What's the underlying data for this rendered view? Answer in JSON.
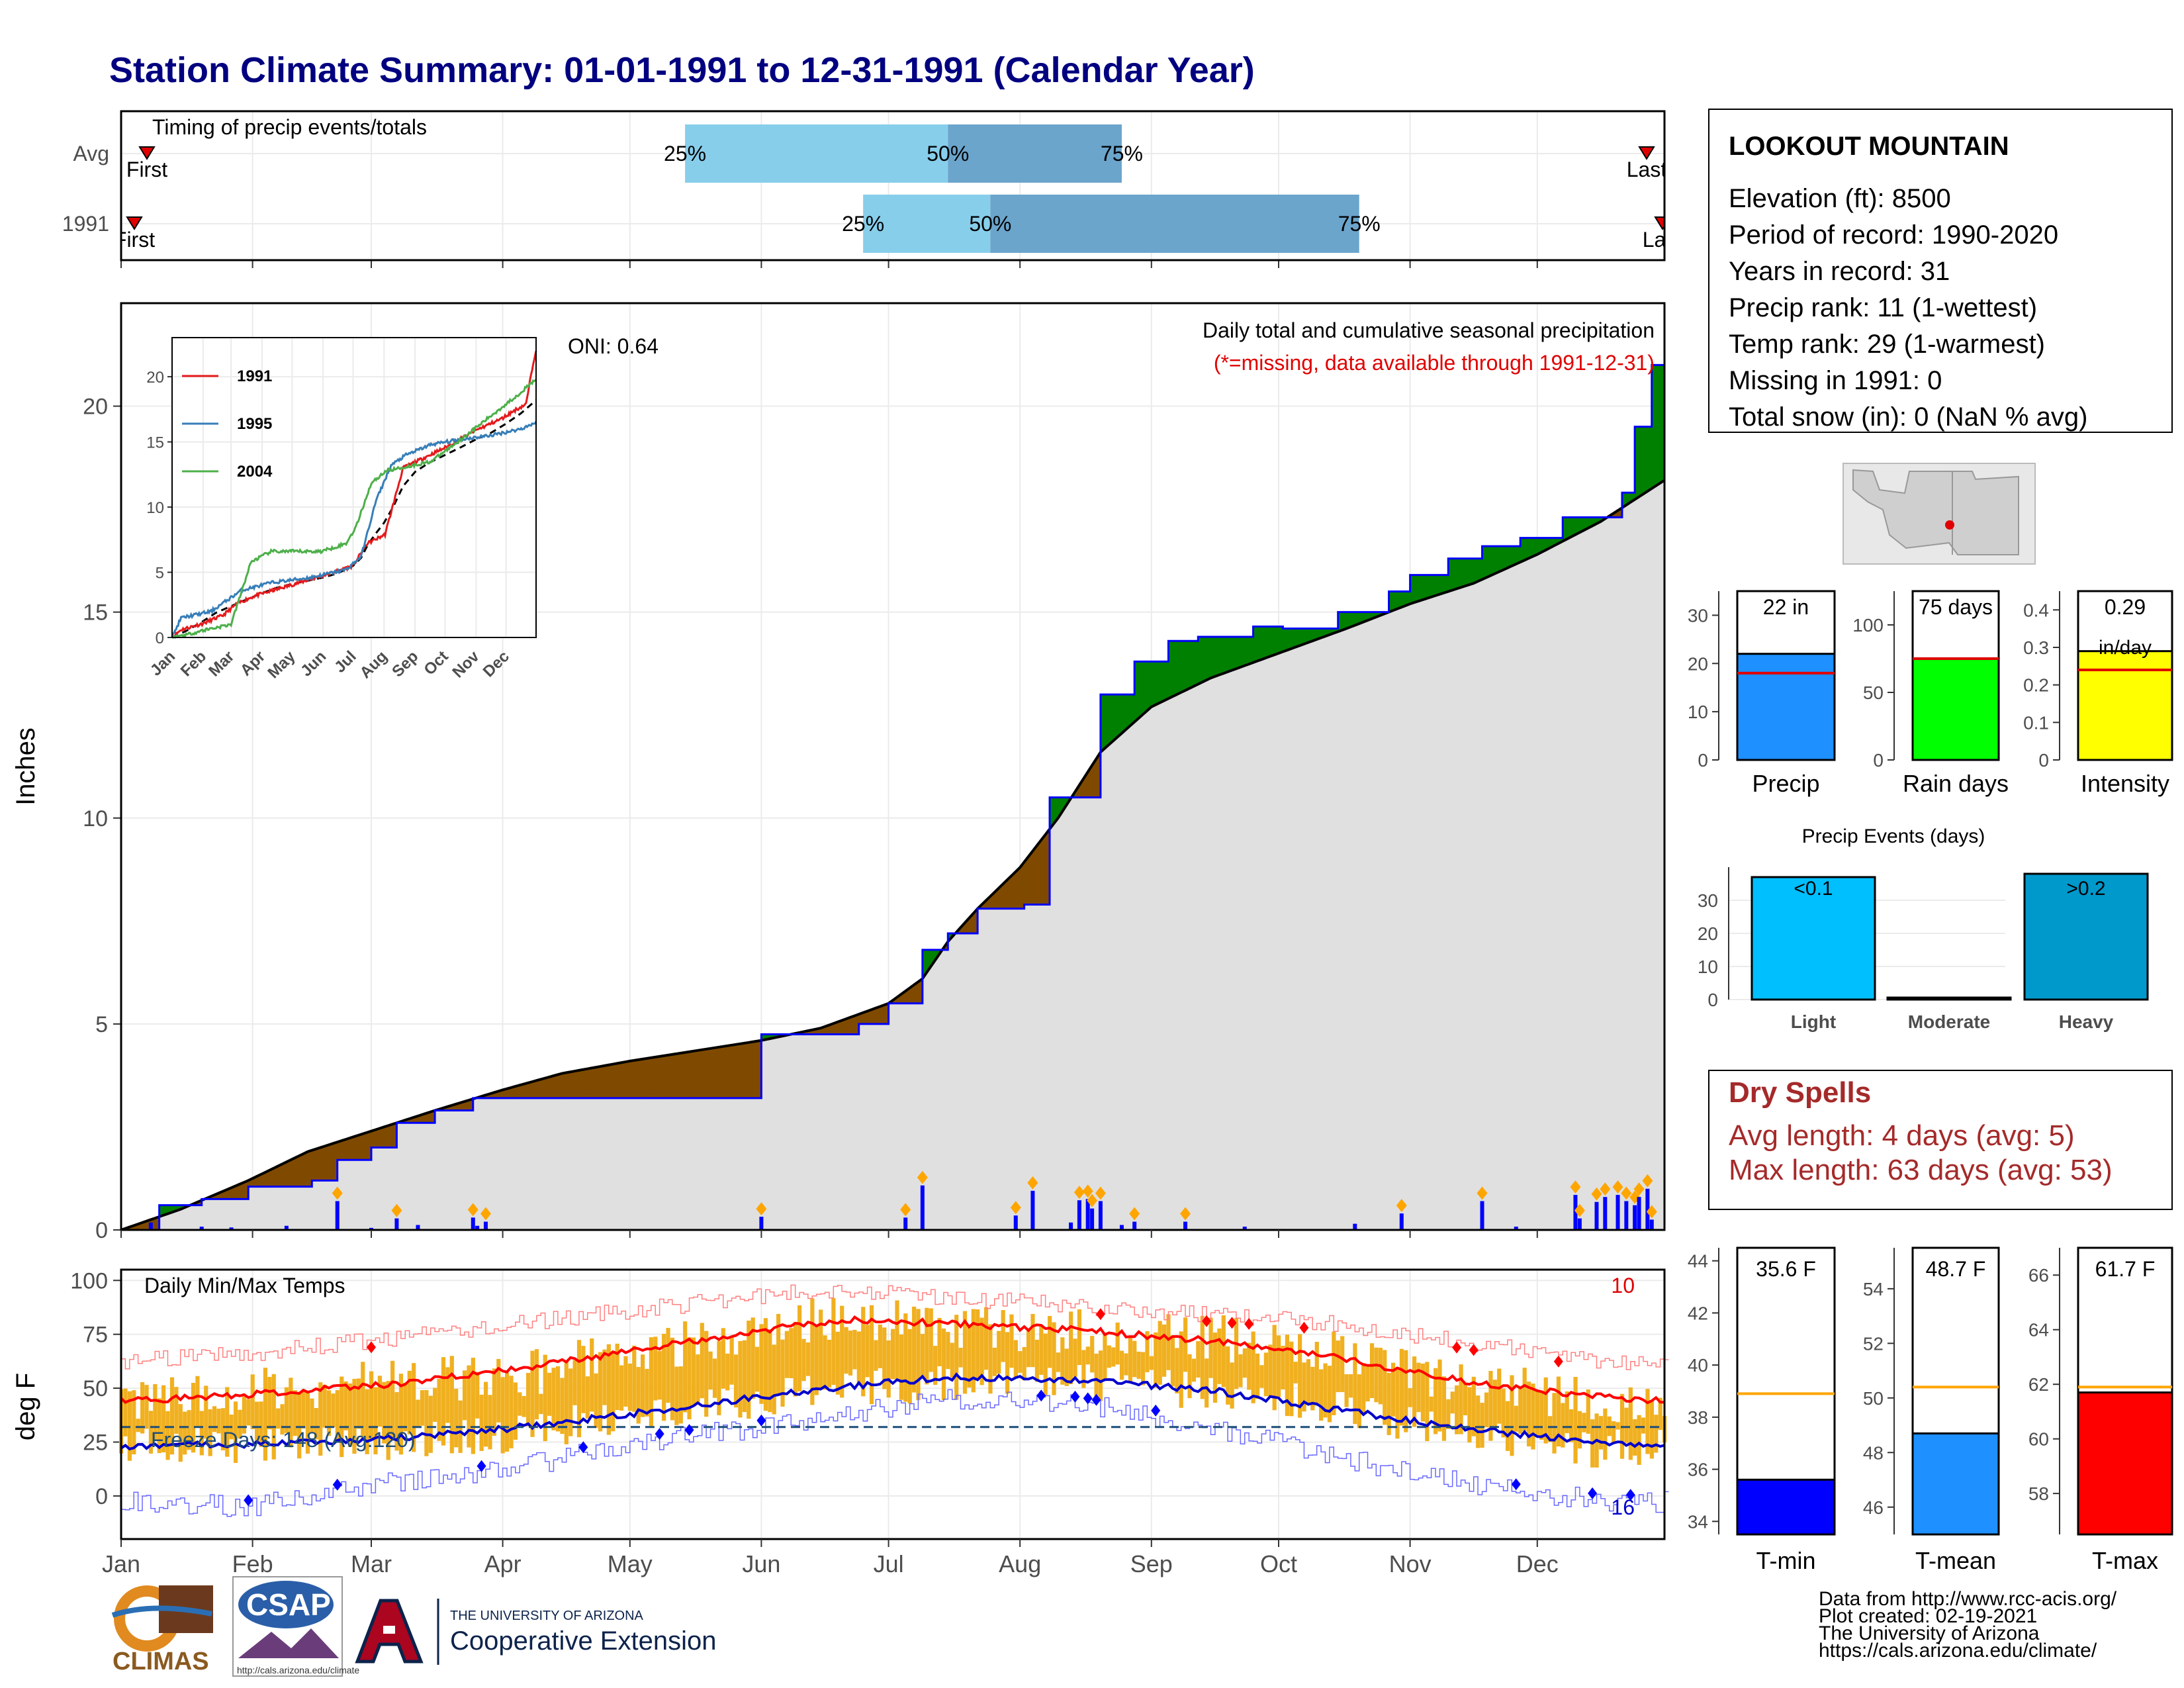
{
  "title": "Station Climate Summary: 01-01-1991 to 12-31-1991 (Calendar Year)",
  "months": [
    "Jan",
    "Feb",
    "Mar",
    "Apr",
    "May",
    "Jun",
    "Jul",
    "Aug",
    "Sep",
    "Oct",
    "Nov",
    "Dec"
  ],
  "timing": {
    "label": "Timing of precip events/totals",
    "rows": [
      {
        "name": "Avg",
        "q25": 134,
        "q50": 196,
        "q75": 237,
        "first_label": "First",
        "last_label": "Last"
      },
      {
        "name": "1991",
        "q25": 176,
        "q50": 206,
        "q75": 293,
        "first_label": "First",
        "last_label": "Last"
      }
    ],
    "q_labels": [
      "25%",
      "50%",
      "75%"
    ]
  },
  "precip": {
    "ylabel": "Inches",
    "yticks": [
      0,
      5,
      10,
      15,
      20
    ],
    "oni": "ONI: 0.64",
    "title": "Daily total and cumulative seasonal precipitation",
    "missing_note": "(*=missing, data available through 1991-12-31)"
  },
  "inset": {
    "yticks": [
      0,
      5,
      10,
      15,
      20
    ],
    "months": [
      "Jan",
      "Feb",
      "Mar",
      "Apr",
      "May",
      "Jun",
      "Jul",
      "Aug",
      "Sep",
      "Oct",
      "Nov",
      "Dec"
    ],
    "series": [
      {
        "name": "1991",
        "color": "#e41a1c"
      },
      {
        "name": "1995",
        "color": "#377eb8"
      },
      {
        "name": "2004",
        "color": "#4daf4a"
      }
    ]
  },
  "temps": {
    "ylabel": "deg F",
    "label": "Daily Min/Max Temps",
    "freeze": "Freeze Days: 148 (Avg:120)",
    "yticks": [
      0,
      25,
      50,
      75,
      100
    ],
    "count_hi": "10",
    "count_lo": "16"
  },
  "station": {
    "name": "LOOKOUT MOUNTAIN",
    "lines": [
      "Elevation (ft): 8500",
      "Period of record: 1990-2020",
      "Years in record: 31",
      "Precip rank: 11 (1-wettest)",
      "Temp rank: 29 (1-warmest)",
      "Missing in 1991: 0",
      "Total snow (in): 0 (NaN % avg)"
    ]
  },
  "summary_bars": [
    {
      "xlabel": "Precip",
      "value_label": "22 in",
      "value": 22,
      "avg": 18,
      "ymax": 35,
      "yticks": [
        0,
        10,
        20,
        30
      ],
      "color": "#1e90ff"
    },
    {
      "xlabel": "Rain days",
      "value_label": "75 days",
      "value": 75,
      "avg": 75,
      "ymax": 125,
      "yticks": [
        0,
        50,
        100
      ],
      "color": "#00ff00"
    },
    {
      "xlabel": "Intensity",
      "value_label": "0.29",
      "value_label2": "in/day",
      "value": 0.29,
      "avg": 0.24,
      "ymax": 0.45,
      "yticks": [
        0.0,
        0.1,
        0.2,
        0.3,
        0.4
      ],
      "color": "#ffff00"
    }
  ],
  "events": {
    "title": "Precip Events (days)",
    "yticks": [
      0,
      10,
      20,
      30
    ],
    "bars": [
      {
        "name": "Light",
        "label": "<0.1",
        "value": 37,
        "color": "#00bfff"
      },
      {
        "name": "Moderate",
        "label": "",
        "value": 0,
        "color": "#00bfff"
      },
      {
        "name": "Heavy",
        "label": ">0.2",
        "value": 38,
        "color": "#0099cc"
      }
    ]
  },
  "dry": {
    "title": "Dry Spells",
    "avg": "Avg length: 4 days (avg: 5)",
    "max": "Max length: 63 days (avg: 53)"
  },
  "temp_bars": [
    {
      "xlabel": "T-min",
      "value_label": "35.6 F",
      "value": 35.6,
      "avg": 38.9,
      "ymin": 33.5,
      "ymax": 44.5,
      "yticks": [
        34,
        36,
        38,
        40,
        42,
        44
      ],
      "color": "#0000ff"
    },
    {
      "xlabel": "T-mean",
      "value_label": "48.7 F",
      "value": 48.7,
      "avg": 50.4,
      "ymin": 45,
      "ymax": 55.5,
      "yticks": [
        46,
        48,
        50,
        52,
        54
      ],
      "color": "#1e90ff"
    },
    {
      "xlabel": "T-max",
      "value_label": "61.7 F",
      "value": 61.7,
      "avg": 61.9,
      "ymin": 56.5,
      "ymax": 67,
      "yticks": [
        58,
        60,
        62,
        64,
        66
      ],
      "color": "#ff0000"
    }
  ],
  "credits": [
    "Data from http://www.rcc-acis.org/",
    "Plot created: 02-19-2021",
    "The University of Arizona",
    "https://cals.arizona.edu/climate/"
  ],
  "logos": {
    "climas": "CLIMAS",
    "csap": "CSAP",
    "csap_url": "http://cals.arizona.edu/climate",
    "ua_small": "THE UNIVERSITY OF ARIZONA",
    "ua_big": "Cooperative Extension"
  },
  "chart_data": [
    {
      "type": "line",
      "title": "Daily total and cumulative seasonal precipitation",
      "ylabel": "Inches",
      "ylim": [
        0,
        22.5
      ],
      "x_unit": "day of year",
      "series": [
        {
          "name": "1991",
          "x": [
            1,
            10,
            20,
            31,
            46,
            52,
            60,
            66,
            75,
            84,
            152,
            167,
            175,
            182,
            190,
            196,
            203,
            214,
            220,
            232,
            240,
            248,
            255,
            268,
            275,
            288,
            300,
            305,
            314,
            322,
            331,
            341,
            355,
            358,
            362,
            365
          ],
          "values": [
            0,
            0.6,
            0.75,
            1.05,
            1.2,
            1.7,
            2.0,
            2.6,
            2.9,
            3.2,
            4.75,
            4.75,
            5.0,
            5.5,
            6.8,
            7.2,
            7.8,
            7.9,
            10.5,
            13.0,
            13.8,
            14.3,
            14.4,
            14.65,
            14.6,
            15.0,
            15.5,
            15.9,
            16.3,
            16.6,
            16.8,
            17.3,
            17.9,
            19.5,
            21.0,
            22.1
          ]
        },
        {
          "name": "Avg",
          "x": [
            1,
            15,
            31,
            45,
            60,
            75,
            91,
            105,
            121,
            152,
            166,
            182,
            190,
            196,
            203,
            213,
            222,
            232,
            244,
            258,
            274,
            290,
            305,
            320,
            335,
            350,
            365
          ],
          "values": [
            0,
            0.5,
            1.2,
            1.9,
            2.4,
            2.9,
            3.4,
            3.8,
            4.1,
            4.6,
            4.9,
            5.5,
            6.1,
            7.0,
            7.8,
            8.8,
            10.0,
            11.6,
            12.7,
            13.4,
            14.0,
            14.6,
            15.2,
            15.7,
            16.4,
            17.2,
            18.2
          ]
        }
      ],
      "daily_precip": {
        "days": [
          8,
          20,
          27,
          40,
          52,
          60,
          66,
          71,
          84,
          85,
          87,
          152,
          186,
          190,
          212,
          216,
          225,
          227,
          229,
          230,
          232,
          237,
          240,
          252,
          266,
          292,
          303,
          322,
          330,
          344,
          345,
          349,
          351,
          354,
          356,
          358,
          359,
          361,
          362
        ],
        "values": [
          0.18,
          0.08,
          0.06,
          0.1,
          0.7,
          0.05,
          0.28,
          0.12,
          0.3,
          0.1,
          0.2,
          0.32,
          0.3,
          1.08,
          0.35,
          0.95,
          0.18,
          0.72,
          0.75,
          0.52,
          0.7,
          0.12,
          0.2,
          0.2,
          0.08,
          0.15,
          0.4,
          0.7,
          0.08,
          0.85,
          0.28,
          0.68,
          0.8,
          0.85,
          0.7,
          0.6,
          0.8,
          1.0,
          0.25
        ]
      }
    },
    {
      "type": "line",
      "title": "Daily Min/Max Temps",
      "ylabel": "deg F",
      "ylim": [
        -20,
        105
      ],
      "x_unit": "day of year",
      "series": [
        {
          "name": "Avg max",
          "x": [
            1,
            31,
            60,
            91,
            121,
            152,
            172,
            196,
            227,
            258,
            288,
            319,
            349,
            365
          ],
          "values": [
            44,
            47,
            51,
            58,
            67,
            77,
            82,
            80,
            77,
            72,
            64,
            53,
            46,
            44
          ]
        },
        {
          "name": "Avg min",
          "x": [
            1,
            31,
            60,
            91,
            121,
            152,
            172,
            196,
            227,
            258,
            288,
            319,
            349,
            365
          ],
          "values": [
            23,
            24,
            26,
            31,
            38,
            46,
            51,
            55,
            54,
            49,
            40,
            31,
            25,
            23
          ]
        },
        {
          "name": "Record high",
          "x": [
            1,
            31,
            60,
            91,
            121,
            152,
            172,
            196,
            227,
            258,
            288,
            319,
            349,
            365
          ],
          "values": [
            62,
            66,
            72,
            79,
            86,
            93,
            96,
            92,
            88,
            84,
            80,
            71,
            63,
            62
          ]
        },
        {
          "name": "Record low",
          "x": [
            1,
            31,
            60,
            91,
            121,
            152,
            172,
            196,
            227,
            258,
            288,
            319,
            349,
            365
          ],
          "values": [
            -3,
            -5,
            5,
            12,
            24,
            32,
            38,
            45,
            43,
            32,
            18,
            5,
            -2,
            -3
          ]
        },
        {
          "name": "1991 max",
          "x": [
            1,
            31,
            60,
            91,
            121,
            152,
            172,
            196,
            227,
            258,
            288,
            319,
            349,
            365
          ],
          "values": [
            44,
            48,
            53,
            55,
            66,
            78,
            84,
            80,
            76,
            74,
            66,
            52,
            44,
            44
          ]
        },
        {
          "name": "1991 min",
          "x": [
            1,
            31,
            60,
            91,
            121,
            152,
            172,
            196,
            227,
            258,
            288,
            319,
            349,
            365
          ],
          "values": [
            22,
            24,
            25,
            28,
            37,
            45,
            50,
            53,
            54,
            48,
            41,
            28,
            22,
            24
          ]
        }
      ],
      "freeze_line": 32
    }
  ]
}
